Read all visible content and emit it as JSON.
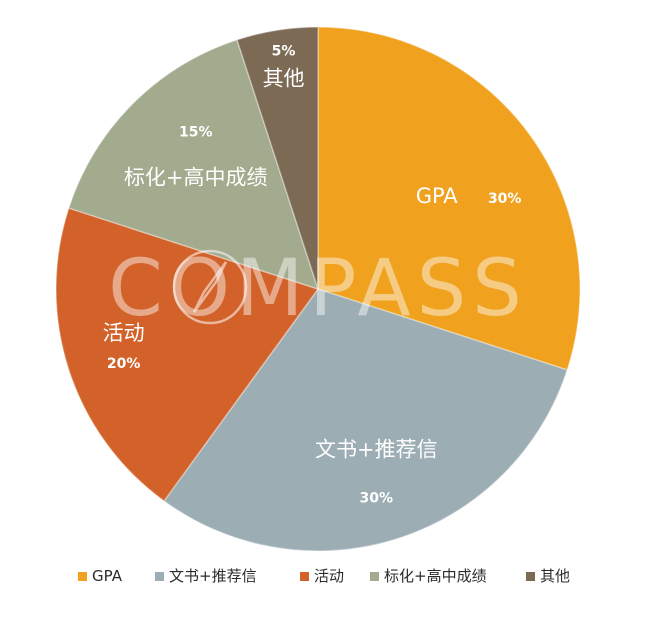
{
  "chart_data": {
    "type": "pie",
    "title": "",
    "slices": [
      {
        "name": "GPA",
        "value": 30,
        "pct_label": "30%",
        "color": "#F0A11E"
      },
      {
        "name": "文书+推荐信",
        "value": 30,
        "pct_label": "30%",
        "color": "#9DADB4"
      },
      {
        "name": "活动",
        "value": 20,
        "pct_label": "20%",
        "color": "#D2622A"
      },
      {
        "name": "标化+高中成绩",
        "value": 15,
        "pct_label": "15%",
        "color": "#A3AB8E"
      },
      {
        "name": "其他",
        "value": 5,
        "pct_label": "5%",
        "color": "#7D6A55"
      }
    ],
    "legend_position": "bottom"
  },
  "watermark": {
    "text": "COMPASS"
  }
}
